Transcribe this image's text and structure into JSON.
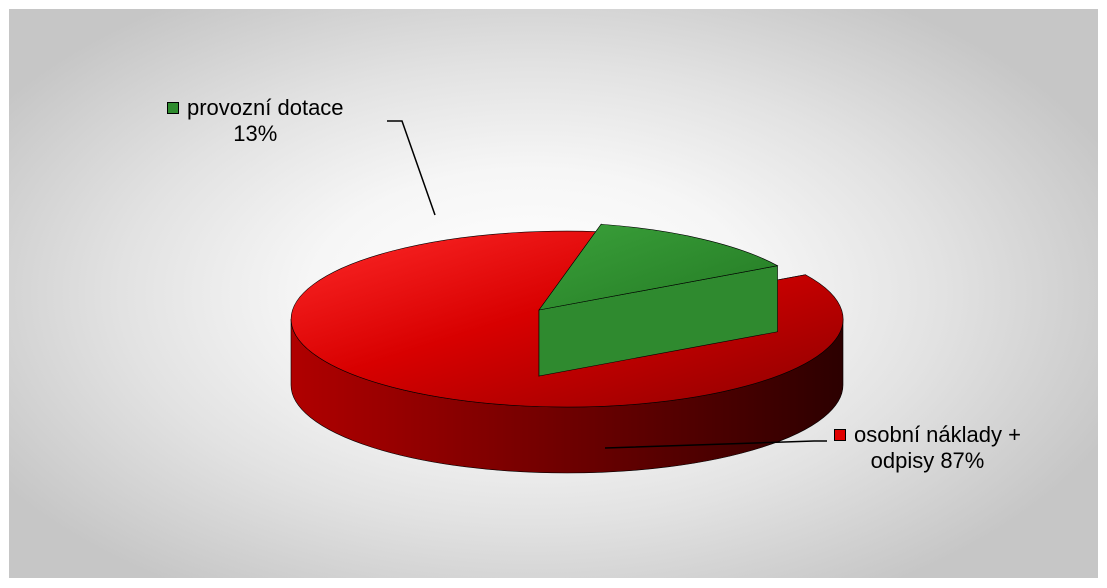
{
  "chart_data": {
    "type": "pie",
    "title": "",
    "series": [
      {
        "slices": [
          {
            "label_line1": "provozní dotace",
            "label_line2": "13%",
            "value": 13,
            "color": "#2e8b2e"
          },
          {
            "label_line1": "osobní náklady +",
            "label_line2": "odpisy 87%",
            "value": 87,
            "color": "#e00000"
          }
        ]
      }
    ],
    "style": "3d-exploded",
    "legend_keys_in_labels": true
  }
}
